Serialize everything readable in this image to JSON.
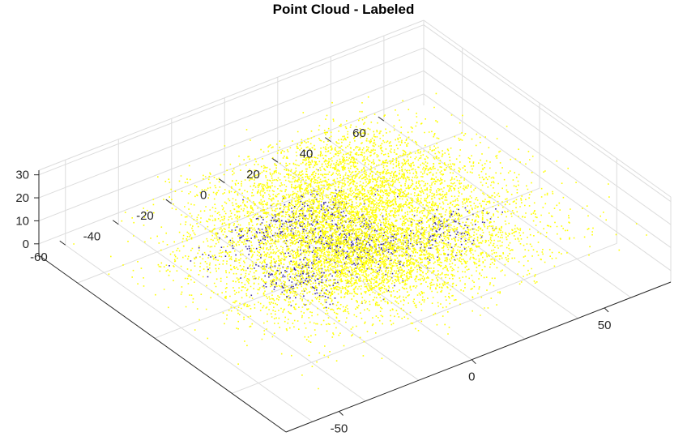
{
  "chart_data": {
    "type": "scatter",
    "projection": "3d",
    "title": "Point Cloud - Labeled",
    "xlabel": "",
    "ylabel": "",
    "zlabel": "",
    "grid": true,
    "xlim": [
      -75,
      85
    ],
    "ylim": [
      -70,
      75
    ],
    "zlim": [
      -5,
      32
    ],
    "x_ticks": [
      -50,
      0,
      50
    ],
    "y_ticks": [
      -60,
      -40,
      -20,
      0,
      20,
      40,
      60
    ],
    "z_ticks": [
      0,
      10,
      20,
      30
    ],
    "series": [
      {
        "color": "#ffff00",
        "clusters": [
          {
            "cx": 0,
            "cy": 0,
            "cz": 5,
            "sx": 25,
            "sy": 18,
            "sz": 5,
            "n": 2400
          },
          {
            "cx": -20,
            "cy": 20,
            "cz": 6,
            "sx": 18,
            "sy": 15,
            "sz": 6,
            "n": 1200
          },
          {
            "cx": 20,
            "cy": -10,
            "cz": 7,
            "sx": 20,
            "sy": 14,
            "sz": 6,
            "n": 1200
          },
          {
            "cx": 35,
            "cy": 10,
            "cz": 10,
            "sx": 18,
            "sy": 18,
            "sz": 8,
            "n": 900
          },
          {
            "cx": -40,
            "cy": 0,
            "cz": 3,
            "sx": 15,
            "sy": 25,
            "sz": 3,
            "n": 600
          },
          {
            "cx": 0,
            "cy": 40,
            "cz": 8,
            "sx": 25,
            "sy": 12,
            "sz": 6,
            "n": 500
          },
          {
            "cx": 10,
            "cy": -35,
            "cz": 4,
            "sx": 25,
            "sy": 12,
            "sz": 4,
            "n": 500
          },
          {
            "cx": -55,
            "cy": 30,
            "cz": 2,
            "sx": 12,
            "sy": 15,
            "sz": 2,
            "n": 250
          },
          {
            "cx": 55,
            "cy": 25,
            "cz": 14,
            "sx": 14,
            "sy": 18,
            "sz": 8,
            "n": 300
          }
        ]
      },
      {
        "color": "#3b2ba0",
        "clusters": [
          {
            "cx": -5,
            "cy": 5,
            "cz": 1,
            "sx": 14,
            "sy": 8,
            "sz": 1,
            "n": 450
          },
          {
            "cx": -30,
            "cy": -5,
            "cz": 0.5,
            "sx": 6,
            "sy": 14,
            "sz": 1,
            "n": 220
          },
          {
            "cx": 15,
            "cy": 30,
            "cz": 2,
            "sx": 8,
            "sy": 8,
            "sz": 2,
            "n": 150
          },
          {
            "cx": 5,
            "cy": -20,
            "cz": 1,
            "sx": 10,
            "sy": 6,
            "sz": 1,
            "n": 180
          }
        ]
      }
    ]
  }
}
